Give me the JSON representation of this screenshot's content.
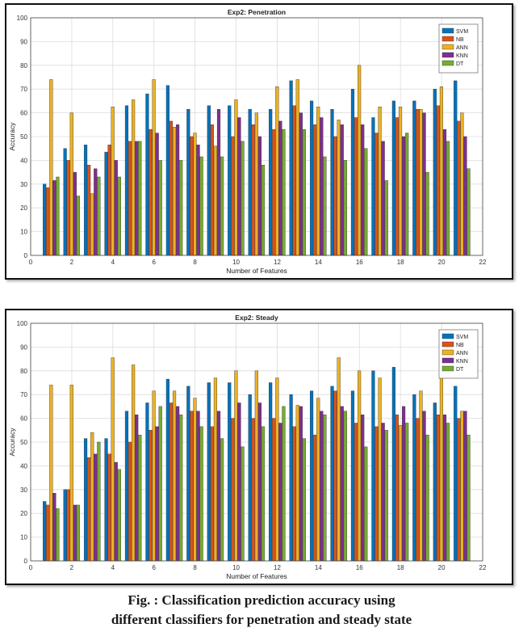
{
  "chart_data": [
    {
      "type": "bar",
      "title": "Exp2: Penetration",
      "xlabel": "Number of Features",
      "ylabel": "Accuracy",
      "xlim": [
        0,
        22
      ],
      "ylim": [
        0,
        100
      ],
      "xticks": [
        0,
        2,
        4,
        6,
        8,
        10,
        12,
        14,
        16,
        18,
        20,
        22
      ],
      "yticks": [
        0,
        10,
        20,
        30,
        40,
        50,
        60,
        70,
        80,
        90,
        100
      ],
      "grid": true,
      "legend_position": "top-right",
      "x": [
        1,
        2,
        3,
        4,
        5,
        6,
        7,
        8,
        9,
        10,
        11,
        12,
        13,
        14,
        15,
        16,
        17,
        18,
        19,
        20,
        21
      ],
      "series": [
        {
          "name": "SVM",
          "color": "#0072bd",
          "values": [
            30,
            45,
            46.5,
            43.5,
            63,
            68,
            71.5,
            61.5,
            63,
            63,
            61.5,
            61.5,
            73.5,
            65,
            61.5,
            70,
            58,
            65,
            65,
            70,
            73.5
          ]
        },
        {
          "name": "NB",
          "color": "#d95319",
          "values": [
            28.5,
            40,
            38,
            46.5,
            48,
            53,
            56.5,
            50,
            55,
            50,
            55,
            53,
            63,
            55,
            50,
            58,
            51.5,
            58,
            61.5,
            63,
            56.5
          ]
        },
        {
          "name": "ANN",
          "color": "#edb120",
          "values": [
            74,
            60,
            26,
            62.5,
            65.5,
            74,
            54,
            51.5,
            46,
            65.5,
            60,
            71,
            74,
            62.5,
            57,
            80,
            62.5,
            62.5,
            61.5,
            71,
            60
          ]
        },
        {
          "name": "KNN",
          "color": "#7e2f8e",
          "values": [
            31.5,
            35,
            36.5,
            40,
            48,
            51.5,
            55,
            46.5,
            61.5,
            58,
            50,
            56.5,
            60,
            58,
            55,
            55,
            48,
            50,
            60,
            53,
            50
          ]
        },
        {
          "name": "DT",
          "color": "#77ac30",
          "values": [
            33,
            25,
            33,
            33,
            48,
            40,
            40,
            41.5,
            41.5,
            48,
            38,
            53,
            53,
            41.5,
            40,
            45,
            31.5,
            51.5,
            35,
            48,
            36.5
          ]
        }
      ]
    },
    {
      "type": "bar",
      "title": "Exp2: Steady",
      "xlabel": "Number of Features",
      "ylabel": "Accuracy",
      "xlim": [
        0,
        22
      ],
      "ylim": [
        0,
        100
      ],
      "xticks": [
        0,
        2,
        4,
        6,
        8,
        10,
        12,
        14,
        16,
        18,
        20,
        22
      ],
      "yticks": [
        0,
        10,
        20,
        30,
        40,
        50,
        60,
        70,
        80,
        90,
        100
      ],
      "grid": true,
      "legend_position": "top-right",
      "x": [
        1,
        2,
        3,
        4,
        5,
        6,
        7,
        8,
        9,
        10,
        11,
        12,
        13,
        14,
        15,
        16,
        17,
        18,
        19,
        20,
        21
      ],
      "series": [
        {
          "name": "SVM",
          "color": "#0072bd",
          "values": [
            25,
            30,
            51.5,
            51.5,
            63,
            66.5,
            76.5,
            73.5,
            75,
            75,
            70,
            75,
            70,
            71.5,
            73.5,
            71.5,
            80,
            81.5,
            70,
            66.5,
            73.5
          ]
        },
        {
          "name": "NB",
          "color": "#d95319",
          "values": [
            23.5,
            30,
            43.5,
            45,
            50,
            55,
            66.5,
            63,
            56.5,
            60,
            60,
            60,
            56.5,
            53,
            71.5,
            58,
            56.5,
            61.5,
            60,
            61.5,
            60
          ]
        },
        {
          "name": "ANN",
          "color": "#edb120",
          "values": [
            74,
            74,
            54,
            85.5,
            82.5,
            71.5,
            71.5,
            68.5,
            77,
            80,
            80,
            77,
            65.5,
            68.5,
            85.5,
            80,
            77,
            57,
            71.5,
            80,
            63
          ]
        },
        {
          "name": "KNN",
          "color": "#7e2f8e",
          "values": [
            28.5,
            23.5,
            45,
            41.5,
            61.5,
            56.5,
            65,
            63,
            63,
            66.5,
            66.5,
            58,
            65,
            63,
            65,
            61.5,
            58,
            65,
            63,
            61.5,
            63
          ]
        },
        {
          "name": "DT",
          "color": "#77ac30",
          "values": [
            22,
            23.5,
            50,
            38.5,
            53,
            65,
            61.5,
            56.5,
            51.5,
            48,
            56.5,
            65,
            51.5,
            61.5,
            63,
            48,
            55,
            58,
            53,
            58,
            53
          ]
        }
      ]
    }
  ],
  "caption": {
    "line1": "Fig.   : Classification prediction accuracy using",
    "line2": "different classifiers for penetration and steady state"
  }
}
